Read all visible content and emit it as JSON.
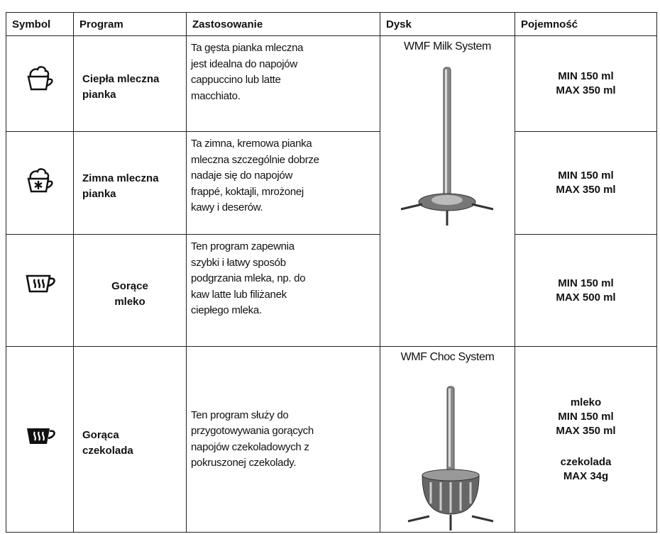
{
  "table": {
    "header": [
      "Symbol",
      "Program",
      "Zastosowanie",
      "Dysk",
      "Pojemność"
    ],
    "rows": [
      {
        "program": [
          "Ciepła mleczna",
          "pianka"
        ],
        "description": [
          "Ta gęsta pianka mleczna",
          "jest idealna do napojów",
          "cappuccino lub latte",
          "macchiato."
        ],
        "capacity": [
          [
            "MIN 150 ml",
            "MAX 350 ml"
          ]
        ]
      },
      {
        "program": [
          "Zimna mleczna",
          "pianka"
        ],
        "description": [
          "Ta zimna, kremowa pianka",
          "mleczna szczególnie dobrze",
          "nadaje się do napojów",
          "frappé, koktajli, mrożonej",
          "kawy i deserów."
        ],
        "capacity": [
          [
            "MIN 150 ml",
            "MAX 350 ml"
          ]
        ]
      },
      {
        "program": [
          "Gorące",
          "mleko"
        ],
        "description": [
          "Ten program zapewnia",
          "szybki i łatwy sposób",
          "podgrzania mleka, np. do",
          "kaw latte lub filiżanek",
          "ciepłego mleka."
        ],
        "capacity": [
          [
            "MIN 150 ml",
            "MAX 500 ml"
          ]
        ]
      },
      {
        "program": [
          "Gorąca",
          "czekolada"
        ],
        "description": [
          "Ten program służy do",
          "przygotowywania gorących",
          "napojów czekoladowych z",
          "pokruszonej czekolady."
        ],
        "capacity": [
          [
            "mleko",
            "MIN 150 ml",
            "MAX 350 ml"
          ],
          [
            "czekolada",
            "MAX 34g"
          ]
        ]
      }
    ],
    "disks": [
      "WMF Milk System",
      "WMF Choc System"
    ]
  }
}
